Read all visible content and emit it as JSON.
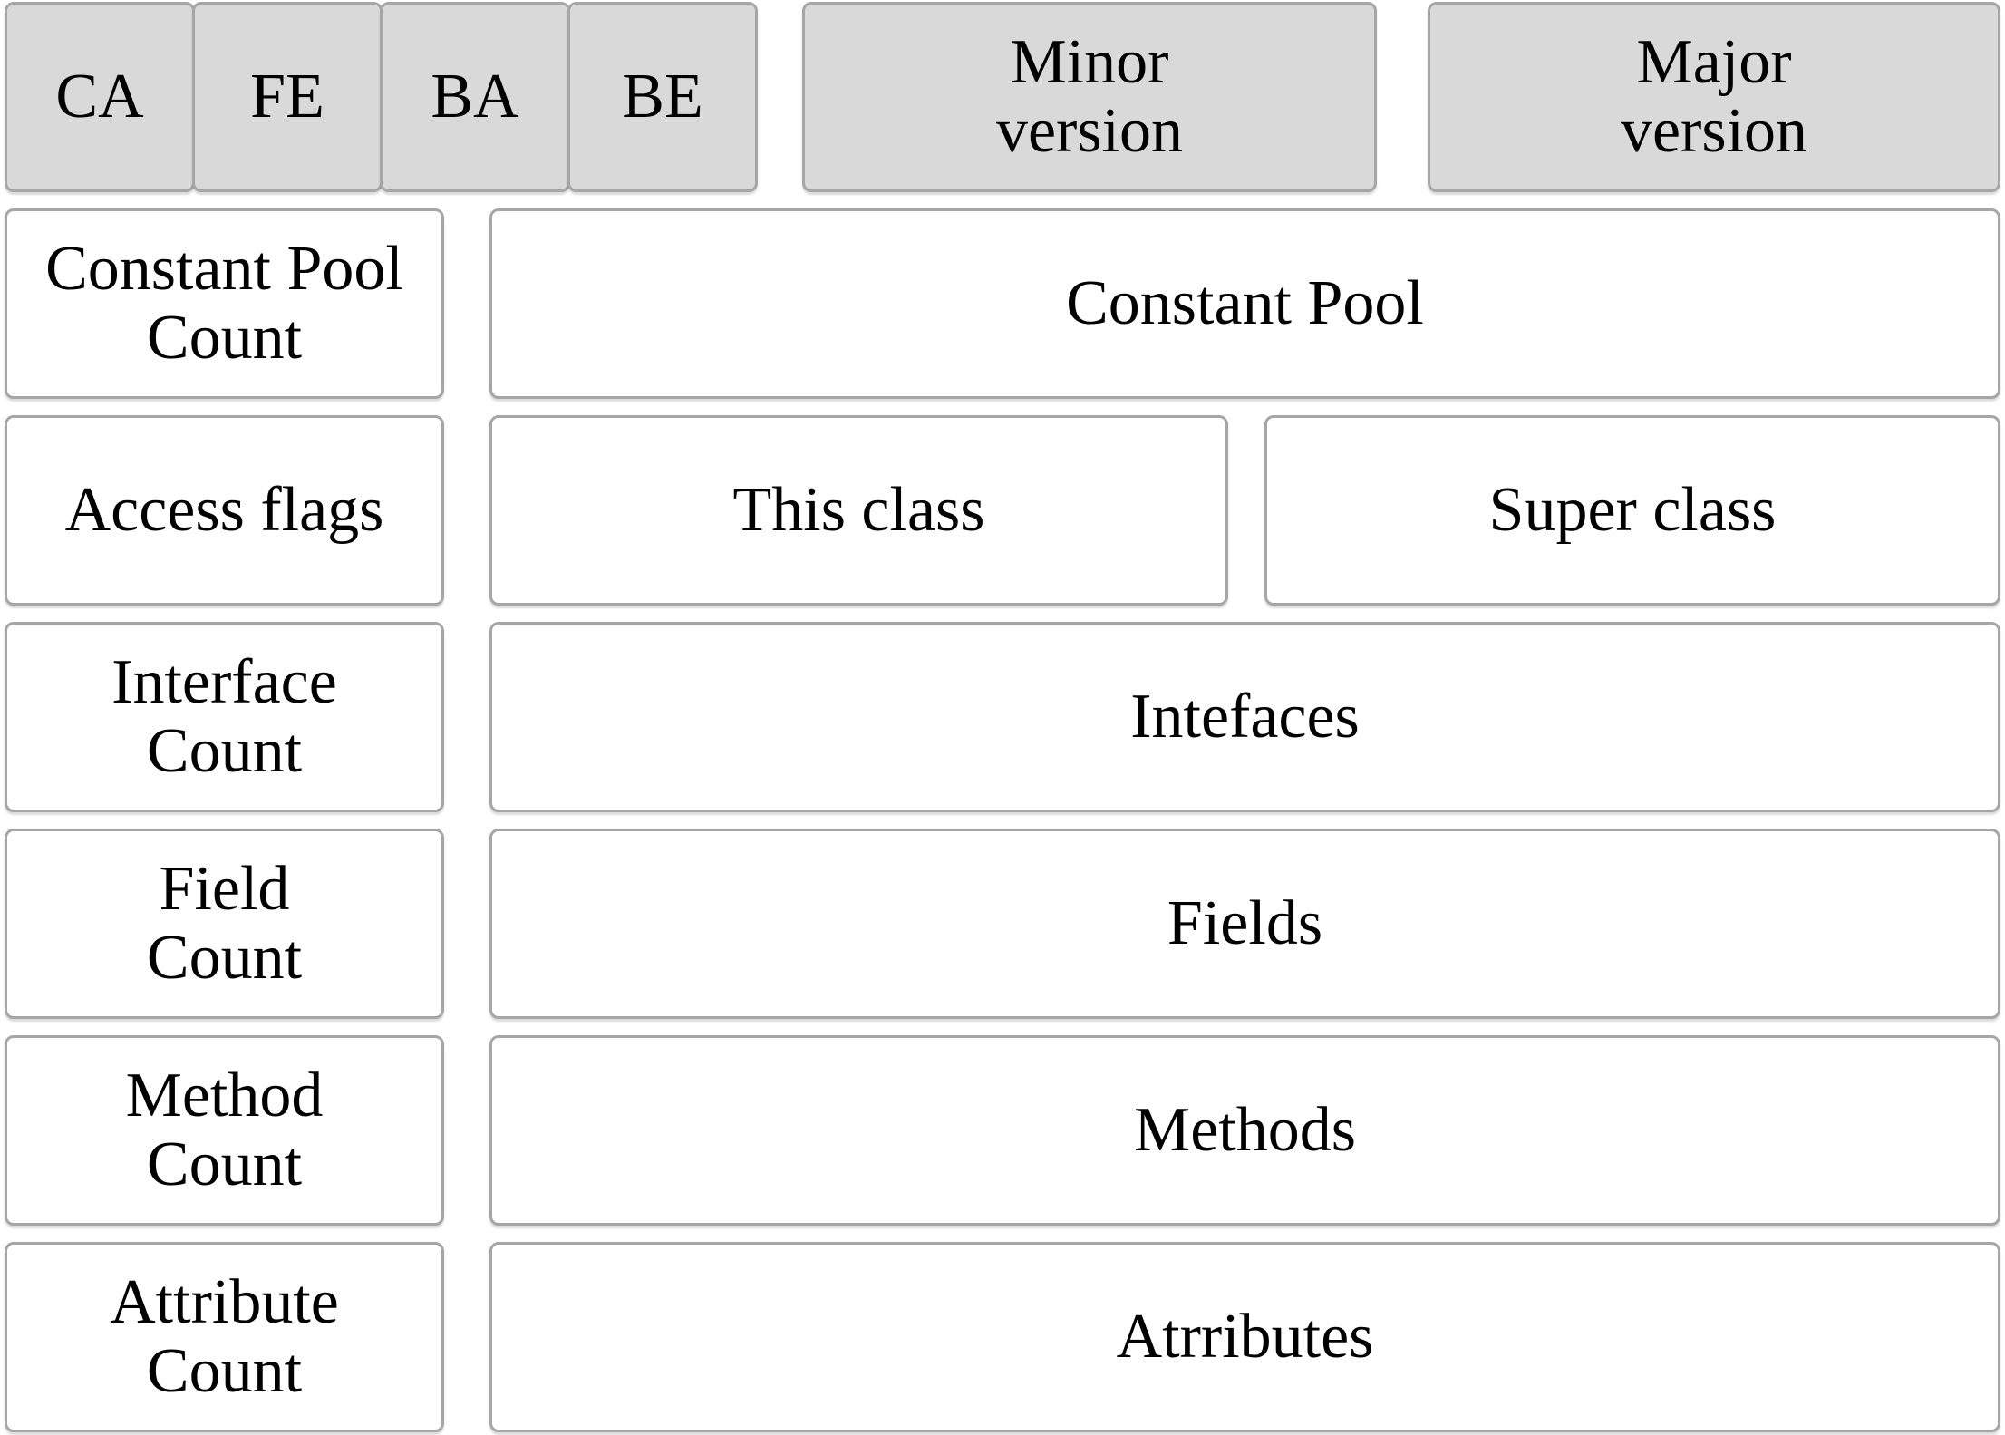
{
  "diagram_subject": "Java class file format",
  "colors": {
    "header_box_fill": "#d9d9d9",
    "body_box_fill": "#ffffff",
    "box_border": "#a6a6a6",
    "text": "#000000"
  },
  "header": {
    "magic_bytes": [
      "CA",
      "FE",
      "BA",
      "BE"
    ],
    "minor_version": "Minor\nversion",
    "major_version": "Major\nversion"
  },
  "rows": [
    {
      "left": "Constant Pool\nCount",
      "right": [
        "Constant Pool"
      ]
    },
    {
      "left": "Access flags",
      "right": [
        "This class",
        "Super class"
      ]
    },
    {
      "left": "Interface\nCount",
      "right": [
        "Intefaces"
      ]
    },
    {
      "left": "Field\nCount",
      "right": [
        "Fields"
      ]
    },
    {
      "left": "Method\nCount",
      "right": [
        "Methods"
      ]
    },
    {
      "left": "Attribute\nCount",
      "right": [
        "Atrributes"
      ]
    }
  ]
}
